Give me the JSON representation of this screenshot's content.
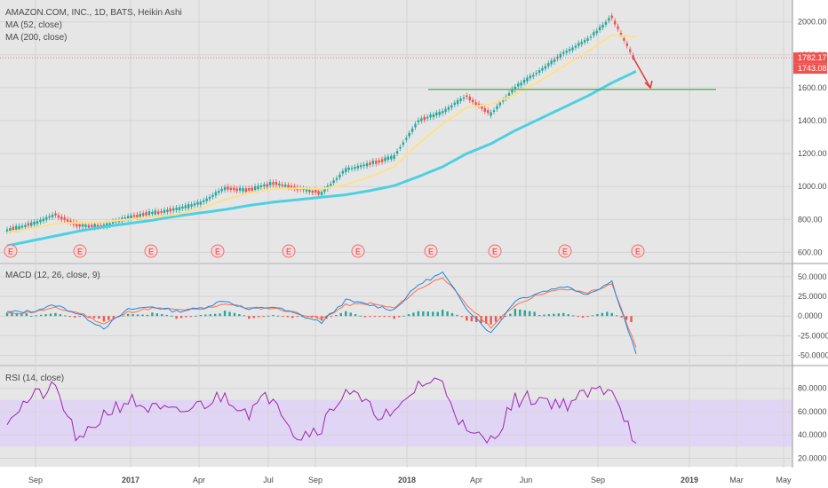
{
  "header": {
    "symbol_line": "AMAZON.COM, INC., 1D, BATS, Heikin Ashi",
    "ma52_label": "MA (52, close)",
    "ma200_label": "MA (200, close)"
  },
  "macd_label": "MACD (12, 26, close, 9)",
  "rsi_label": "RSI (14, close)",
  "x_axis_labels": [
    "Sep",
    "2017",
    "Apr",
    "Jul",
    "Sep",
    "2018",
    "Apr",
    "Jun",
    "Sep",
    "2019",
    "Mar",
    "May"
  ],
  "x_axis_bold": [
    "2017",
    "2018",
    "2019"
  ],
  "colors": {
    "up": "#26a69a",
    "down": "#ef5350",
    "ma52": "#ffe08a",
    "ma200": "#4dd0e1",
    "macd_line": "#1e88e5",
    "signal_line": "#ff7043",
    "rsi_line": "#9c27b0",
    "rsi_band": "#e1d5f5",
    "hline_green": "#4caf50",
    "hline_red": "#ef5350",
    "arrow": "#e53935",
    "pane_bg": "#e6e6e6"
  },
  "chart_data": [
    {
      "type": "line",
      "pane": "price",
      "title": "AMAZON.COM, INC., 1D, BATS, Heikin Ashi",
      "ylim": [
        570,
        2090
      ],
      "y_ticks": [
        "2000.00",
        "1800.00",
        "1600.00",
        "1400.00",
        "1200.00",
        "1000.00",
        "800.00",
        "600.00"
      ],
      "x_dates": [
        "2016-08",
        "2016-09",
        "2016-10",
        "2016-11",
        "2016-12",
        "2017-01",
        "2017-02",
        "2017-03",
        "2017-04",
        "2017-05",
        "2017-06",
        "2017-07",
        "2017-08",
        "2017-09",
        "2017-10",
        "2017-11",
        "2017-12",
        "2018-01",
        "2018-02",
        "2018-03",
        "2018-04",
        "2018-05",
        "2018-06",
        "2018-07",
        "2018-08",
        "2018-09",
        "2018-10"
      ],
      "series": [
        {
          "name": "Heikin Ashi close",
          "values": [
            735,
            770,
            830,
            760,
            760,
            815,
            840,
            860,
            900,
            990,
            980,
            1020,
            990,
            960,
            1100,
            1140,
            1180,
            1400,
            1450,
            1550,
            1440,
            1600,
            1700,
            1810,
            1890,
            2030,
            1760
          ]
        },
        {
          "name": "MA (52, close)",
          "values": [
            720,
            745,
            775,
            780,
            785,
            800,
            815,
            830,
            865,
            920,
            960,
            985,
            990,
            985,
            1010,
            1060,
            1120,
            1260,
            1380,
            1480,
            1500,
            1560,
            1640,
            1730,
            1820,
            1920,
            1910
          ]
        },
        {
          "name": "MA (200, close)",
          "values": [
            640,
            670,
            700,
            730,
            755,
            775,
            795,
            820,
            840,
            860,
            885,
            905,
            920,
            935,
            950,
            975,
            1005,
            1060,
            1120,
            1200,
            1260,
            1340,
            1410,
            1480,
            1550,
            1630,
            1700
          ]
        }
      ],
      "price_labels": [
        "1782.17",
        "1743.08"
      ],
      "horizontal_lines": [
        {
          "value": 1782.17,
          "color": "red"
        },
        {
          "value": 1590,
          "color": "green"
        }
      ],
      "earnings_markers": [
        "E",
        "E",
        "E",
        "E",
        "E",
        "E",
        "E",
        "E",
        "E"
      ]
    },
    {
      "type": "line",
      "pane": "macd",
      "title": "MACD (12, 26, close, 9)",
      "ylim": [
        -55,
        60
      ],
      "y_ticks": [
        "50.0000",
        "25.0000",
        "0.0000",
        "-25.0000",
        "-50.0000"
      ],
      "series": [
        {
          "name": "MACD",
          "values": [
            5,
            6,
            14,
            2,
            -15,
            8,
            12,
            6,
            10,
            20,
            8,
            12,
            2,
            -8,
            20,
            14,
            8,
            40,
            55,
            10,
            -22,
            20,
            30,
            38,
            28,
            44,
            -48
          ]
        },
        {
          "name": "Signal",
          "values": [
            3,
            5,
            10,
            4,
            -10,
            5,
            10,
            8,
            8,
            16,
            10,
            10,
            4,
            -4,
            14,
            16,
            10,
            34,
            50,
            14,
            -14,
            14,
            28,
            34,
            30,
            40,
            -40
          ]
        }
      ]
    },
    {
      "type": "line",
      "pane": "rsi",
      "title": "RSI (14, close)",
      "ylim": [
        15,
        95
      ],
      "band": [
        30,
        70
      ],
      "y_ticks": [
        "80.0000",
        "60.0000",
        "40.0000",
        "20.0000"
      ],
      "series": [
        {
          "name": "RSI",
          "values": [
            55,
            72,
            80,
            32,
            58,
            70,
            62,
            58,
            66,
            74,
            60,
            76,
            38,
            48,
            80,
            62,
            55,
            84,
            86,
            40,
            35,
            70,
            72,
            66,
            75,
            82,
            33
          ]
        }
      ]
    }
  ]
}
